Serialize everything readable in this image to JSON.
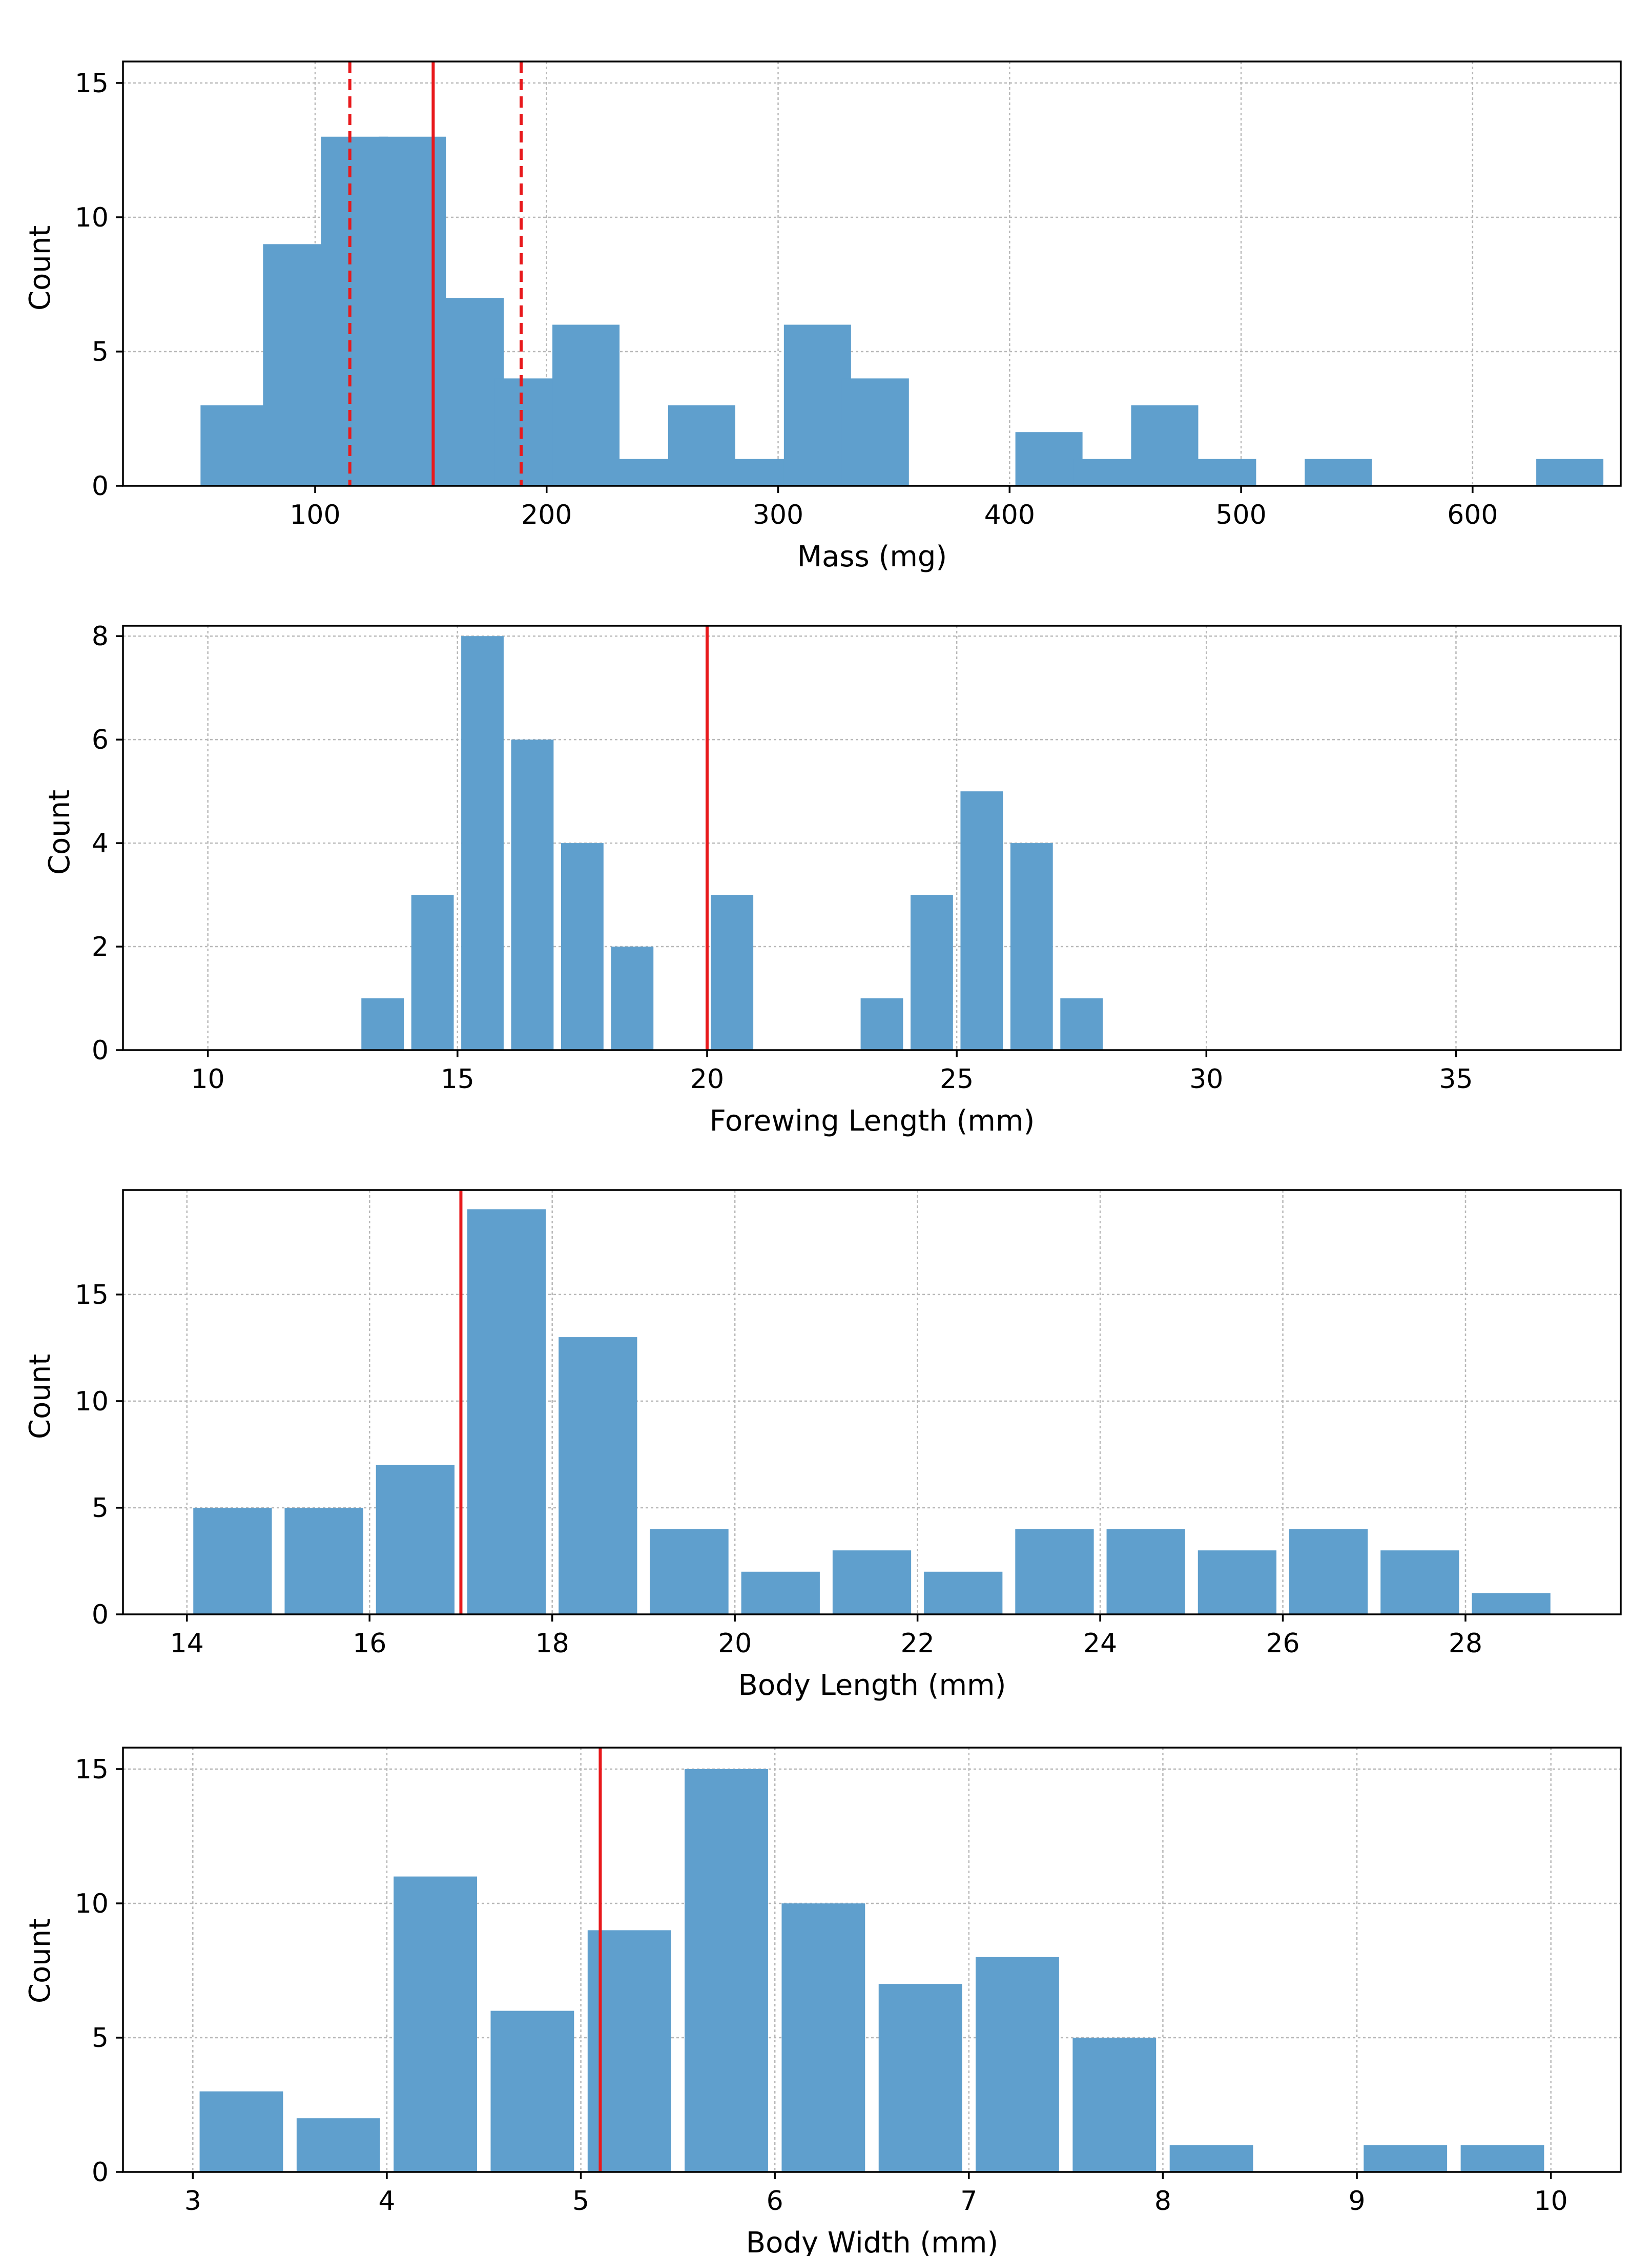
{
  "colors": {
    "bar": "#5f9fcd",
    "reference_line": "#e8191c",
    "grid": "#b8b8b8",
    "axes": "#000000"
  },
  "chart_data": [
    {
      "type": "bar",
      "title": "",
      "xlabel": "Mass (mg)",
      "ylabel": "Count",
      "xlim": [
        17,
        664
      ],
      "ylim": [
        0,
        15.8
      ],
      "xticks": [
        100,
        200,
        300,
        400,
        500,
        600
      ],
      "yticks": [
        0,
        5,
        10,
        15
      ],
      "grid": true,
      "bin_width": 29,
      "bars": [
        {
          "x": 65,
          "count": 3
        },
        {
          "x": 92,
          "count": 9
        },
        {
          "x": 117,
          "count": 13
        },
        {
          "x": 142,
          "count": 13
        },
        {
          "x": 167,
          "count": 7
        },
        {
          "x": 192,
          "count": 4
        },
        {
          "x": 217,
          "count": 6
        },
        {
          "x": 242,
          "count": 1
        },
        {
          "x": 267,
          "count": 3
        },
        {
          "x": 292,
          "count": 1
        },
        {
          "x": 317,
          "count": 6
        },
        {
          "x": 342,
          "count": 4
        },
        {
          "x": 417,
          "count": 2
        },
        {
          "x": 442,
          "count": 1
        },
        {
          "x": 467,
          "count": 3
        },
        {
          "x": 492,
          "count": 1
        },
        {
          "x": 542,
          "count": 1
        },
        {
          "x": 642,
          "count": 1
        }
      ],
      "reference_lines": [
        {
          "x": 151,
          "style": "solid"
        },
        {
          "x": 115,
          "style": "dashed"
        },
        {
          "x": 189,
          "style": "dashed"
        }
      ]
    },
    {
      "type": "bar",
      "title": "",
      "xlabel": "Forewing Length (mm)",
      "ylabel": "Count",
      "xlim": [
        8.3,
        38.3
      ],
      "ylim": [
        0,
        8.2
      ],
      "xticks": [
        10,
        15,
        20,
        25,
        30,
        35
      ],
      "yticks": [
        0,
        2,
        4,
        6,
        8
      ],
      "grid": true,
      "bin_width": 0.85,
      "bars": [
        {
          "x": 13.5,
          "count": 1
        },
        {
          "x": 14.5,
          "count": 3
        },
        {
          "x": 15.5,
          "count": 8
        },
        {
          "x": 16.5,
          "count": 6
        },
        {
          "x": 17.5,
          "count": 4
        },
        {
          "x": 18.5,
          "count": 2
        },
        {
          "x": 20.5,
          "count": 3
        },
        {
          "x": 23.5,
          "count": 1
        },
        {
          "x": 24.5,
          "count": 3
        },
        {
          "x": 25.5,
          "count": 5
        },
        {
          "x": 26.5,
          "count": 4
        },
        {
          "x": 27.5,
          "count": 1
        }
      ],
      "reference_lines": [
        {
          "x": 20.0,
          "style": "solid"
        }
      ]
    },
    {
      "type": "bar",
      "title": "",
      "xlabel": "Body Length (mm)",
      "ylabel": "Count",
      "xlim": [
        13.3,
        29.7
      ],
      "ylim": [
        0,
        19.9
      ],
      "xticks": [
        14,
        16,
        18,
        20,
        22,
        24,
        26,
        28
      ],
      "yticks": [
        0,
        5,
        10,
        15
      ],
      "grid": true,
      "bin_width": 0.86,
      "bars": [
        {
          "x": 14.5,
          "count": 5
        },
        {
          "x": 15.5,
          "count": 5
        },
        {
          "x": 16.5,
          "count": 7
        },
        {
          "x": 17.5,
          "count": 19
        },
        {
          "x": 18.5,
          "count": 13
        },
        {
          "x": 19.5,
          "count": 4
        },
        {
          "x": 20.5,
          "count": 2
        },
        {
          "x": 21.5,
          "count": 3
        },
        {
          "x": 22.5,
          "count": 2
        },
        {
          "x": 23.5,
          "count": 4
        },
        {
          "x": 24.5,
          "count": 4
        },
        {
          "x": 25.5,
          "count": 3
        },
        {
          "x": 26.5,
          "count": 4
        },
        {
          "x": 27.5,
          "count": 3
        },
        {
          "x": 28.5,
          "count": 1
        }
      ],
      "reference_lines": [
        {
          "x": 17.0,
          "style": "solid"
        }
      ]
    },
    {
      "type": "bar",
      "title": "",
      "xlabel": "Body Width (mm)",
      "ylabel": "Count",
      "xlim": [
        2.64,
        10.36
      ],
      "ylim": [
        0,
        15.8
      ],
      "xticks": [
        3,
        4,
        5,
        6,
        7,
        8,
        9,
        10
      ],
      "yticks": [
        0,
        5,
        10,
        15
      ],
      "grid": true,
      "bin_width": 0.43,
      "bars": [
        {
          "x": 3.25,
          "count": 3
        },
        {
          "x": 3.75,
          "count": 2
        },
        {
          "x": 4.25,
          "count": 11
        },
        {
          "x": 4.75,
          "count": 6
        },
        {
          "x": 5.25,
          "count": 9
        },
        {
          "x": 5.75,
          "count": 15
        },
        {
          "x": 6.25,
          "count": 10
        },
        {
          "x": 6.75,
          "count": 7
        },
        {
          "x": 7.25,
          "count": 8
        },
        {
          "x": 7.75,
          "count": 5
        },
        {
          "x": 8.25,
          "count": 1
        },
        {
          "x": 9.25,
          "count": 1
        },
        {
          "x": 9.75,
          "count": 1
        }
      ],
      "reference_lines": [
        {
          "x": 5.1,
          "style": "solid"
        }
      ]
    }
  ]
}
